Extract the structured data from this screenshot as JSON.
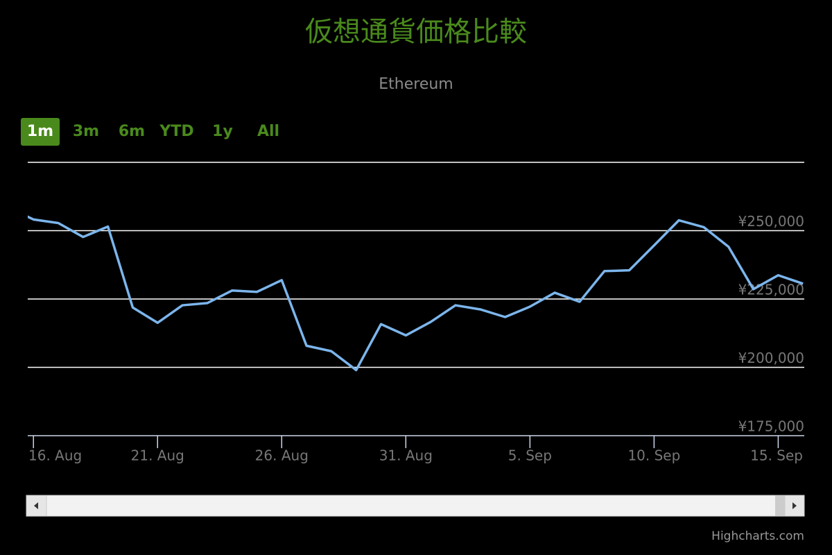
{
  "chart_data": {
    "type": "line",
    "title": "仮想通貨価格比較",
    "subtitle": "Ethereum",
    "x": [
      15,
      16,
      17,
      18,
      19,
      20,
      21,
      22,
      23,
      24,
      25,
      26,
      27,
      28,
      29,
      30,
      31,
      32,
      33,
      34,
      35,
      36,
      37,
      38,
      39,
      40,
      41,
      42,
      43,
      44,
      45,
      46,
      47
    ],
    "values": [
      258400,
      254100,
      252800,
      247700,
      251500,
      221900,
      216300,
      222700,
      223500,
      228100,
      227600,
      231900,
      207900,
      205900,
      199000,
      215800,
      211700,
      216600,
      222700,
      221200,
      218400,
      222200,
      227300,
      224000,
      235200,
      235500,
      244600,
      253800,
      251300,
      244100,
      228600,
      233700,
      230600
    ],
    "color": "#7cb5ec",
    "xlim": [
      15.77,
      47.05
    ],
    "ylim": [
      175000,
      275000
    ],
    "xticks": [
      {
        "value": 16,
        "label": "16. Aug"
      },
      {
        "value": 21,
        "label": "21. Aug"
      },
      {
        "value": 26,
        "label": "26. Aug"
      },
      {
        "value": 31,
        "label": "31. Aug"
      },
      {
        "value": 36,
        "label": "5. Sep"
      },
      {
        "value": 41,
        "label": "10. Sep"
      },
      {
        "value": 46,
        "label": "15. Sep"
      }
    ],
    "yticks": [
      {
        "value": 175000,
        "label": "¥175,000"
      },
      {
        "value": 200000,
        "label": "¥200,000"
      },
      {
        "value": 225000,
        "label": "¥225,000"
      },
      {
        "value": 250000,
        "label": "¥250,000"
      }
    ],
    "grid": true,
    "range_selector": {
      "buttons": [
        "1m",
        "3m",
        "6m",
        "YTD",
        "1y",
        "All"
      ],
      "selected": 0
    },
    "credits": "Highcharts.com"
  }
}
